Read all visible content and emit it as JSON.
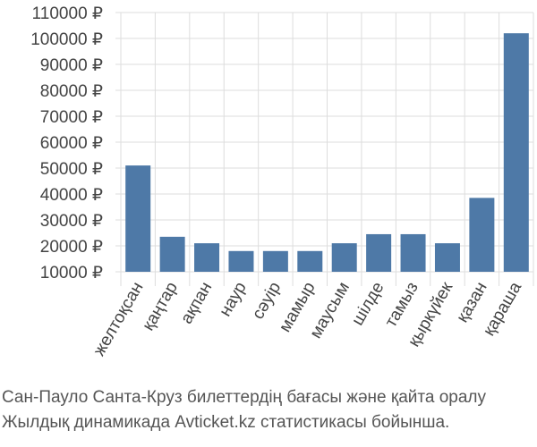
{
  "chart_data": {
    "type": "bar",
    "categories": [
      "желтоқсан",
      "қаңтар",
      "ақпан",
      "наур",
      "сәуір",
      "мамыр",
      "маусым",
      "шілде",
      "тамыз",
      "қыркүйек",
      "қазан",
      "қараша"
    ],
    "values": [
      51000,
      23500,
      21000,
      18000,
      18000,
      18000,
      21000,
      24500,
      24500,
      21000,
      38500,
      102000
    ],
    "yticks": [
      10000,
      20000,
      30000,
      40000,
      50000,
      60000,
      70000,
      80000,
      90000,
      100000,
      110000
    ],
    "ytick_labels": [
      "10000 ₽",
      "20000 ₽",
      "30000 ₽",
      "40000 ₽",
      "50000 ₽",
      "60000 ₽",
      "70000 ₽",
      "80000 ₽",
      "90000 ₽",
      "100000 ₽",
      "110000 ₽"
    ],
    "ylim": [
      10000,
      110000
    ],
    "grid": true,
    "bar_color": "#4e79a7"
  },
  "caption": {
    "line1": "Сан-Пауло Санта-Круз билеттердің бағасы және қайта оралу",
    "line2": "Жылдық динамикада Avticket.kz статистикасы бойынша."
  }
}
